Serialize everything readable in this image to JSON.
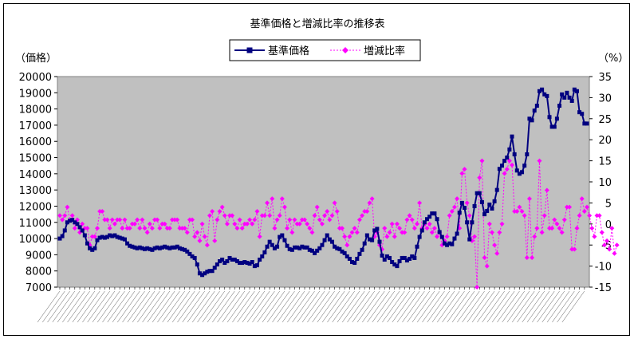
{
  "chart_data": {
    "type": "line",
    "title": "基準価格と増減比率の推移表",
    "y_unit_left": "（価格）",
    "y_unit_right": "（%）",
    "ylim_left": [
      7000,
      20000
    ],
    "ylim_right": [
      -15,
      35
    ],
    "yticks_left": [
      "7000",
      "8000",
      "9000",
      "10000",
      "11000",
      "12000",
      "13000",
      "14000",
      "15000",
      "16000",
      "17000",
      "18000",
      "19000",
      "20000"
    ],
    "yticks_right": [
      "-15",
      "-10",
      "-5",
      "0",
      "5",
      "10",
      "15",
      "20",
      "25",
      "30",
      "35"
    ],
    "plot_background": "#c0c0c0",
    "legend_position": "top-center",
    "series": [
      {
        "name": "基準価格",
        "axis": "left",
        "color": "#000080",
        "marker": "square",
        "line": "solid",
        "values": [
          10000,
          10150,
          10500,
          11000,
          11100,
          11150,
          11000,
          10900,
          10700,
          10500,
          10200,
          9700,
          9400,
          9300,
          9400,
          9900,
          10050,
          10100,
          10050,
          10100,
          10200,
          10150,
          10200,
          10100,
          10050,
          10000,
          9950,
          9700,
          9550,
          9500,
          9450,
          9400,
          9450,
          9400,
          9350,
          9400,
          9350,
          9300,
          9400,
          9450,
          9400,
          9450,
          9500,
          9450,
          9400,
          9450,
          9450,
          9500,
          9400,
          9350,
          9300,
          9200,
          9050,
          8900,
          8800,
          8400,
          7850,
          7750,
          7850,
          7950,
          8000,
          8000,
          8200,
          8400,
          8600,
          8700,
          8500,
          8600,
          8800,
          8700,
          8700,
          8600,
          8500,
          8500,
          8550,
          8500,
          8450,
          8550,
          8300,
          8350,
          8700,
          8900,
          9150,
          9500,
          9800,
          9600,
          9400,
          9500,
          10100,
          10200,
          9900,
          9550,
          9350,
          9300,
          9450,
          9450,
          9400,
          9500,
          9450,
          9450,
          9300,
          9250,
          9100,
          9250,
          9400,
          9600,
          9900,
          10200,
          9950,
          9800,
          9500,
          9400,
          9350,
          9200,
          9100,
          8900,
          8750,
          8550,
          8500,
          8750,
          9050,
          9300,
          9700,
          10200,
          9950,
          9900,
          10500,
          10600,
          9800,
          8950,
          8700,
          8900,
          8800,
          8550,
          8400,
          8300,
          8600,
          8800,
          8800,
          8650,
          8750,
          8900,
          8800,
          9500,
          10100,
          10500,
          11000,
          11200,
          11350,
          11550,
          11550,
          11200,
          10400,
          10100,
          9700,
          9600,
          9700,
          9650,
          10000,
          10300,
          11600,
          12200,
          11900,
          11000,
          9950,
          11000,
          12000,
          12800,
          12800,
          12250,
          11500,
          11700,
          12100,
          11850,
          12300,
          13000,
          14300,
          14500,
          14800,
          15000,
          15500,
          16300,
          15200,
          14200,
          14000,
          14100,
          14500,
          15200,
          17400,
          17300,
          17900,
          18200,
          19100,
          19200,
          18900,
          18800,
          17500,
          16900,
          16900,
          17400,
          18200,
          18900,
          18700,
          19000,
          18700,
          18500,
          19200,
          19100,
          17800,
          17700,
          17100,
          17100
        ]
      },
      {
        "name": "増減比率",
        "axis": "right",
        "color": "#ff00ff",
        "marker": "diamond",
        "line": "dotted",
        "values": [
          2,
          1,
          2,
          4,
          1,
          2,
          -1,
          1,
          -2,
          0,
          -1,
          -1,
          -5,
          -3,
          -3,
          -1,
          3,
          3,
          1,
          1,
          -1,
          1,
          0,
          1,
          1,
          -1,
          1,
          -1,
          -1,
          0,
          0,
          1,
          -1,
          1,
          -1,
          -2,
          0,
          -1,
          1,
          1,
          -1,
          0,
          0,
          -1,
          -1,
          1,
          1,
          1,
          -1,
          -1,
          -1,
          -2,
          1,
          1,
          -3,
          -2,
          -4,
          0,
          -3,
          -5,
          2,
          3,
          -4,
          1,
          3,
          4,
          2,
          0,
          2,
          2,
          0,
          -1,
          1,
          -1,
          0,
          0,
          1,
          0,
          1,
          3,
          -3,
          2,
          2,
          5,
          2,
          6,
          -1,
          1,
          2,
          6,
          4,
          -1,
          1,
          -2,
          1,
          0,
          0,
          1,
          1,
          0,
          -1,
          -2,
          2,
          4,
          1,
          0,
          2,
          3,
          1,
          2,
          5,
          3,
          -1,
          -1,
          -3,
          -5,
          -3,
          -2,
          -1,
          -2,
          1,
          2,
          3,
          3,
          5,
          6,
          -3,
          -2,
          -5,
          -6,
          -1,
          -3,
          -2,
          0,
          -3,
          0,
          -1,
          -2,
          -2,
          1,
          2,
          1,
          -1,
          0,
          5,
          -1,
          0,
          -1,
          0,
          -2,
          -1,
          -3,
          -2,
          -5,
          -4,
          -3,
          2,
          3,
          4,
          6,
          -1,
          12,
          13,
          5,
          2,
          -4,
          -3,
          -15,
          11,
          15,
          -8,
          -10,
          0,
          -2,
          -5,
          -7,
          -2,
          0,
          12,
          13,
          15,
          14,
          3,
          3,
          4,
          3,
          2,
          -8,
          6,
          -8,
          -3,
          -1,
          15,
          -2,
          2,
          8,
          -1,
          -1,
          1,
          0,
          -1,
          -2,
          1,
          4,
          4,
          -6,
          -6,
          -1,
          2,
          6,
          3,
          4,
          2,
          -1,
          -3,
          2,
          2,
          -2,
          -5,
          -4,
          -6,
          -1,
          -7,
          -5
        ]
      }
    ],
    "x_labels_note": "date tick labels (illegible)"
  }
}
